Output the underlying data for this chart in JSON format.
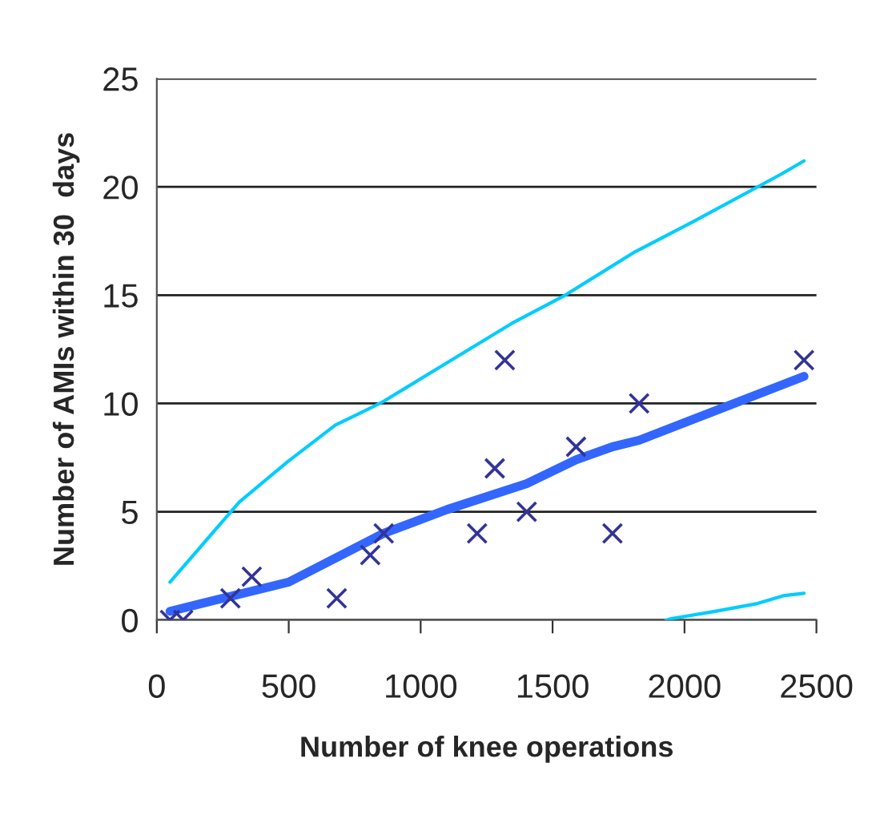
{
  "chart_data": {
    "type": "scatter",
    "xlabel": "Number of knee operations",
    "ylabel": "Number of AMIs within 30  days",
    "xlim": [
      0,
      2500
    ],
    "xticks": [
      0,
      500,
      1000,
      1500,
      2000,
      2500
    ],
    "ylim": [
      0,
      25
    ],
    "yticks": [
      0,
      5,
      10,
      15,
      20,
      25
    ],
    "grid": "y",
    "legend": false,
    "series": [
      {
        "marker": "cross",
        "color": "#333399",
        "x": [
          50,
          100,
          279,
          360,
          682,
          809,
          860,
          1214,
          1281,
          1319,
          1402,
          1589,
          1727,
          1828,
          2453
        ],
        "values": [
          0,
          0,
          1,
          2,
          1,
          3,
          4,
          4,
          7,
          12,
          5,
          8,
          4,
          10,
          12
        ]
      },
      {
        "type": "line",
        "marker": "none",
        "color": "#3366ff",
        "x": [
          50,
          500,
          860,
          1100,
          1402,
          1589,
          1727,
          1828,
          2453
        ],
        "values": [
          0.4,
          1.75,
          4,
          5.1,
          6.3,
          7.4,
          8.0,
          8.3,
          11.25
        ]
      },
      {
        "type": "line",
        "marker": "none",
        "color": "#00ccff",
        "x": [
          50,
          313,
          495,
          677,
          779,
          860,
          1062,
          1346,
          1548,
          1812,
          2034,
          2277,
          2368,
          2453
        ],
        "values": [
          1.75,
          5.45,
          7.3,
          9.0,
          9.6,
          10.1,
          11.6,
          13.7,
          15.0,
          17.0,
          18.4,
          20.0,
          20.6,
          21.2
        ]
      },
      {
        "type": "line",
        "marker": "none",
        "color": "#00ccff",
        "x": [
          1930,
          1954,
          2116,
          2277,
          2379,
          2453
        ],
        "values": [
          0,
          0.07,
          0.4,
          0.76,
          1.13,
          1.23
        ]
      }
    ]
  }
}
